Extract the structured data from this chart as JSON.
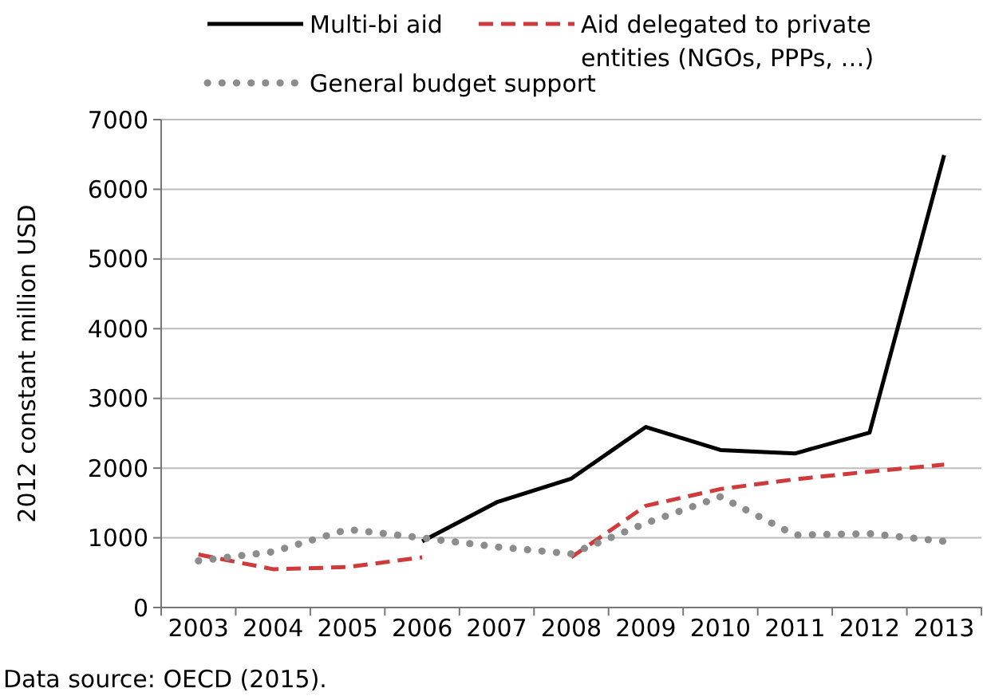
{
  "chart_data": {
    "type": "line",
    "ylabel": "2012 constant million USD",
    "categories": [
      "2003",
      "2004",
      "2005",
      "2006",
      "2007",
      "2008",
      "2009",
      "2010",
      "2011",
      "2012",
      "2013"
    ],
    "series": [
      {
        "name": "Multi-bi aid",
        "color": "#000000",
        "line_style": "solid",
        "values": [
          null,
          null,
          null,
          950,
          1510,
          1850,
          2590,
          2260,
          2210,
          2510,
          6490
        ]
      },
      {
        "name": "Aid delegated to private entities (NGOs, PPPs, …)",
        "color": "#d03a3a",
        "line_style": "dashed",
        "values": [
          760,
          550,
          580,
          720,
          null,
          720,
          1460,
          1700,
          1840,
          1950,
          2050
        ]
      },
      {
        "name": "General budget support",
        "color": "#8c8c8c",
        "line_style": "dotted",
        "values": [
          670,
          800,
          1120,
          1000,
          870,
          770,
          1210,
          1590,
          1040,
          1060,
          950
        ]
      }
    ],
    "ylim": [
      0,
      7000
    ],
    "yticks": [
      0,
      1000,
      2000,
      3000,
      4000,
      5000,
      6000,
      7000
    ],
    "grid": "y",
    "legend": "top",
    "annotations": [
      "Data source: OECD (2015)."
    ]
  }
}
